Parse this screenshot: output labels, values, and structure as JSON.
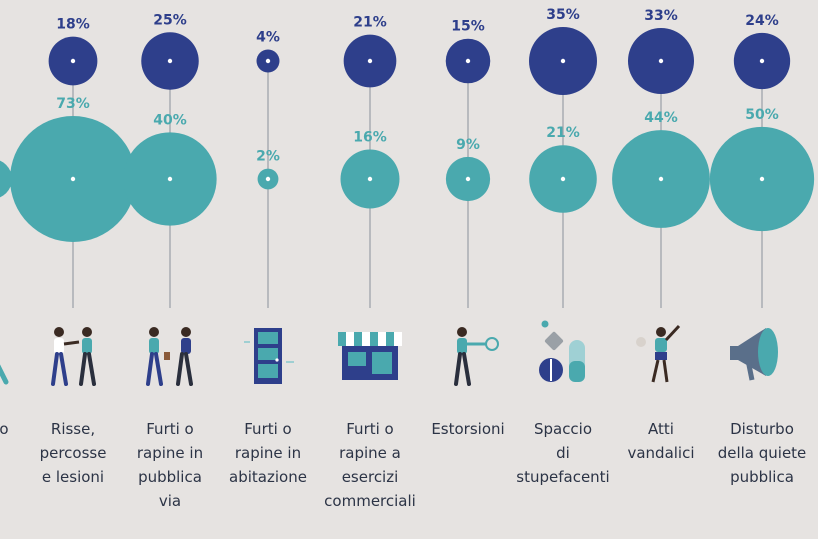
{
  "chart_data": {
    "type": "bubble",
    "title": "",
    "xlabel": "",
    "ylabel": "",
    "legend": "none",
    "grid": false,
    "colors": {
      "series_a": "#2e3f8b",
      "series_b": "#4aa9ae",
      "background": "#e6e3e1"
    },
    "categories": [
      {
        "name": "",
        "label_lines": [
          "o"
        ],
        "icon": "person-icon"
      },
      {
        "name": "Risse, percosse e lesioni",
        "label_lines": [
          "Risse,",
          "percosse",
          "e lesioni"
        ],
        "icon": "fight-icon"
      },
      {
        "name": "Furti o rapine in pubblica via",
        "label_lines": [
          "Furti o",
          "rapine in",
          "pubblica",
          "via"
        ],
        "icon": "street-theft-icon"
      },
      {
        "name": "Furti o rapine in abitazione",
        "label_lines": [
          "Furti o",
          "rapine in",
          "abitazione"
        ],
        "icon": "door-icon"
      },
      {
        "name": "Furti o rapine a esercizi commerciali",
        "label_lines": [
          "Furti o",
          "rapine a",
          "esercizi",
          "commerciali"
        ],
        "icon": "shop-icon"
      },
      {
        "name": "Estorsioni",
        "label_lines": [
          "Estorsioni"
        ],
        "icon": "extortion-icon"
      },
      {
        "name": "Spaccio di stupefacenti",
        "label_lines": [
          "Spaccio",
          "di",
          "stupefacenti"
        ],
        "icon": "pills-icon"
      },
      {
        "name": "Atti vandalici",
        "label_lines": [
          "Atti",
          "vandalici"
        ],
        "icon": "vandal-icon"
      },
      {
        "name": "Disturbo della quiete pubblica",
        "label_lines": [
          "Disturbo",
          "della quiete",
          "pubblica"
        ],
        "icon": "megaphone-icon"
      }
    ],
    "series": [
      {
        "values": [
          null,
          18,
          25,
          4,
          21,
          15,
          35,
          33,
          24
        ],
        "labels": [
          "",
          "18%",
          "25%",
          "4%",
          "21%",
          "15%",
          "35%",
          "33%",
          "24%"
        ]
      },
      {
        "values": [
          null,
          73,
          40,
          2,
          16,
          9,
          21,
          44,
          50
        ],
        "labels": [
          "",
          "73%",
          "40%",
          "2%",
          "16%",
          "9%",
          "21%",
          "44%",
          "50%"
        ]
      }
    ]
  }
}
